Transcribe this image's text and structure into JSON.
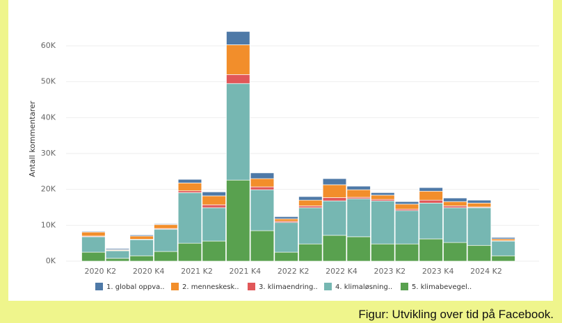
{
  "chart_data": {
    "type": "stacked-bar",
    "y_label": "Antall kommentarer",
    "categories": [
      "2020 K2",
      null,
      "2020 K4",
      null,
      "2021 K2",
      null,
      "2021 K4",
      null,
      "2022 K2",
      null,
      "2022 K4",
      null,
      "2023 K2",
      null,
      "2023 K4",
      null,
      "2024 K2",
      null
    ],
    "series": [
      {
        "name": "5. klimabevegel..",
        "color": "#59a14f",
        "values": [
          2500,
          800,
          1500,
          2700,
          5000,
          5600,
          22600,
          8500,
          2500,
          4800,
          7200,
          6800,
          4800,
          4800,
          6200,
          5200,
          4400,
          1500
        ]
      },
      {
        "name": "4. klimaløsning..",
        "color": "#76b7b2",
        "values": [
          4300,
          2100,
          4500,
          6200,
          14100,
          9300,
          26900,
          11400,
          8300,
          10100,
          9600,
          10600,
          12000,
          9300,
          10000,
          9700,
          10500,
          4100
        ]
      },
      {
        "name": "3. klimaendring..",
        "color": "#e15759",
        "values": [
          200,
          100,
          100,
          200,
          500,
          800,
          2500,
          800,
          300,
          500,
          900,
          400,
          400,
          400,
          800,
          500,
          200,
          100
        ]
      },
      {
        "name": "2. menneskesk..",
        "color": "#f28e2b",
        "values": [
          1100,
          200,
          900,
          1100,
          2200,
          2500,
          8300,
          2300,
          700,
          1600,
          3600,
          2100,
          1200,
          1400,
          2500,
          1200,
          1100,
          500
        ]
      },
      {
        "name": "1. global oppva..",
        "color": "#4e79a7",
        "values": [
          200,
          300,
          300,
          200,
          1000,
          1100,
          3700,
          1600,
          600,
          1000,
          1700,
          1000,
          700,
          700,
          1000,
          1000,
          800,
          400
        ]
      }
    ],
    "legend_order": [
      4,
      3,
      2,
      1,
      0
    ],
    "ylim": [
      0,
      66000
    ],
    "yticks": [
      {
        "value": 0,
        "label": "0K"
      },
      {
        "value": 10000,
        "label": "10K"
      },
      {
        "value": 20000,
        "label": "20K"
      },
      {
        "value": 30000,
        "label": "30K"
      },
      {
        "value": 40000,
        "label": "40K"
      },
      {
        "value": 50000,
        "label": "50K"
      },
      {
        "value": 60000,
        "label": "60K"
      }
    ],
    "grid": true,
    "legend": "bottom",
    "caption": "Figur: Utvikling over tid på Facebook."
  }
}
